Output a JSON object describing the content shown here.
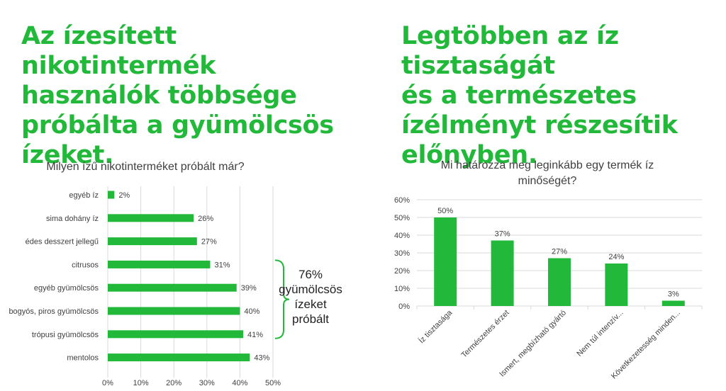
{
  "left_headline": "Az ízesített nikotintermék\nhasználók többsége\npróbálta a gyümölcsös\nízeket.",
  "right_headline": "Legtöbben az íz tisztaságát\nés a természetes\nízélményt részesítik\nelőnyben.",
  "colors": {
    "headline": "#22b83a",
    "bar": "#22b83a",
    "text": "#404040",
    "grid": "#d9d9d9"
  },
  "chart_data": [
    {
      "type": "bar",
      "orientation": "horizontal",
      "title": "Milyen ízű nikotinterméket próbált már?",
      "categories": [
        "egyéb íz",
        "sima dohány íz",
        "édes desszert jellegű",
        "citrusos",
        "egyéb gyümölcsös",
        "bogyós, piros gyümölcsös",
        "trópusi gyümölcsös",
        "mentolos"
      ],
      "values": [
        2,
        26,
        27,
        31,
        39,
        40,
        41,
        43
      ],
      "value_labels": [
        "2%",
        "26%",
        "27%",
        "31%",
        "39%",
        "40%",
        "41%",
        "43%"
      ],
      "xlim": [
        0,
        50
      ],
      "x_ticks": [
        "0%",
        "10%",
        "20%",
        "30%",
        "40%",
        "50%"
      ],
      "grid": true,
      "annotation": {
        "text": [
          "76%",
          "gyümölcsös",
          "ízeket",
          "próbált"
        ],
        "brackets_categories": [
          "citrusos",
          "egyéb gyümölcsös",
          "bogyós, piros gyümölcsös",
          "trópusi gyümölcsös"
        ]
      }
    },
    {
      "type": "bar",
      "orientation": "vertical",
      "title": [
        "Mi határozza meg leginkább egy termék íz",
        "minőségét?"
      ],
      "categories": [
        "Íz tisztasága",
        "Természetes érzet",
        "Ismert, megbízható gyártó",
        "Nem túl intenzív...",
        "Következetesség minden..."
      ],
      "values": [
        50,
        37,
        27,
        24,
        3
      ],
      "value_labels": [
        "50%",
        "37%",
        "27%",
        "24%",
        "3%"
      ],
      "ylim": [
        0,
        60
      ],
      "y_ticks": [
        "0%",
        "10%",
        "20%",
        "30%",
        "40%",
        "50%",
        "60%"
      ],
      "grid": true
    }
  ]
}
